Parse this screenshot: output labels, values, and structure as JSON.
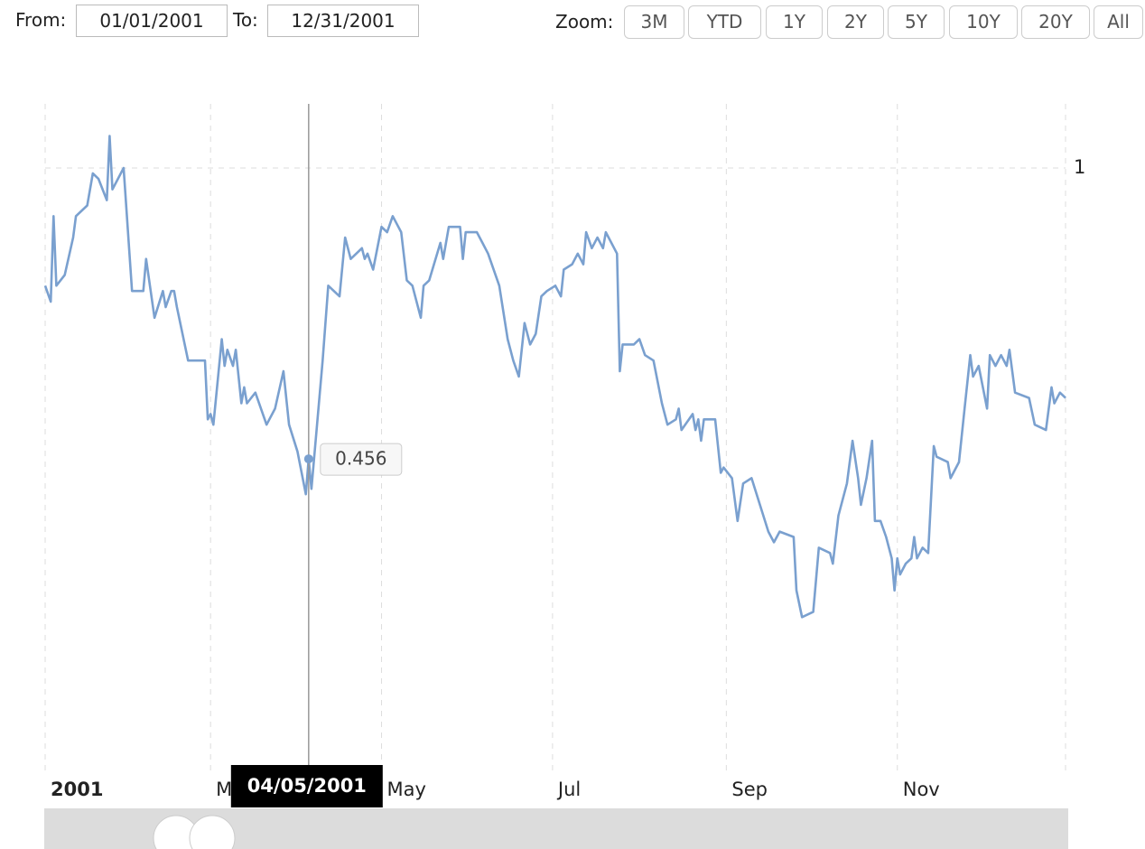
{
  "controls": {
    "from_label": "From:",
    "from": "01/01/2001",
    "to_label": "To:",
    "to": "12/31/2001",
    "zoom_label": "Zoom:",
    "zoom_buttons": [
      "3M",
      "YTD",
      "1Y",
      "2Y",
      "5Y",
      "10Y",
      "20Y",
      "All"
    ]
  },
  "chart_data": {
    "type": "line",
    "color": "#7aa0cf",
    "grid": true,
    "xlim": [
      1,
      365
    ],
    "ylim": [
      -0.13,
      1.12
    ],
    "yticks": [
      1
    ],
    "xticks": [
      {
        "value": 1,
        "label": "2001"
      },
      {
        "value": 60,
        "label": "Mar"
      },
      {
        "value": 121,
        "label": "May"
      },
      {
        "value": 182,
        "label": "Jul"
      },
      {
        "value": 244,
        "label": "Sep"
      },
      {
        "value": 305,
        "label": "Nov"
      }
    ],
    "x": [
      1,
      3,
      4,
      5,
      8,
      11,
      12,
      16,
      18,
      20,
      23,
      24,
      25,
      29,
      32,
      36,
      37,
      40,
      43,
      44,
      46,
      47,
      48,
      52,
      55,
      58,
      59,
      60,
      61,
      64,
      65,
      66,
      68,
      69,
      71,
      72,
      73,
      76,
      80,
      83,
      86,
      88,
      91,
      94,
      95,
      96,
      98,
      100,
      102,
      106,
      108,
      110,
      114,
      115,
      116,
      118,
      121,
      123,
      125,
      128,
      130,
      132,
      135,
      136,
      138,
      142,
      143,
      145,
      149,
      150,
      151,
      155,
      157,
      159,
      163,
      166,
      168,
      170,
      172,
      174,
      176,
      178,
      180,
      183,
      185,
      186,
      189,
      191,
      193,
      194,
      196,
      198,
      200,
      201,
      205,
      206,
      207,
      211,
      213,
      215,
      218,
      221,
      223,
      226,
      227,
      228,
      232,
      233,
      234,
      235,
      236,
      240,
      242,
      243,
      246,
      248,
      250,
      253,
      256,
      259,
      261,
      263,
      268,
      269,
      271,
      275,
      277,
      281,
      282,
      284,
      287,
      289,
      291,
      292,
      294,
      296,
      297,
      299,
      301,
      303,
      304,
      305,
      306,
      308,
      310,
      311,
      312,
      314,
      316,
      318,
      319,
      323,
      324,
      327,
      329,
      331,
      332,
      334,
      337,
      338,
      340,
      342,
      344,
      345,
      347,
      352,
      354,
      358,
      360,
      361,
      363,
      365
    ],
    "values": [
      0.78,
      0.75,
      0.91,
      0.78,
      0.8,
      0.87,
      0.91,
      0.93,
      0.99,
      0.98,
      0.94,
      1.06,
      0.96,
      1.0,
      0.77,
      0.77,
      0.83,
      0.72,
      0.77,
      0.74,
      0.77,
      0.77,
      0.74,
      0.64,
      0.64,
      0.64,
      0.53,
      0.54,
      0.52,
      0.68,
      0.63,
      0.66,
      0.63,
      0.66,
      0.56,
      0.59,
      0.56,
      0.58,
      0.52,
      0.55,
      0.62,
      0.52,
      0.47,
      0.39,
      0.456,
      0.4,
      0.52,
      0.64,
      0.78,
      0.76,
      0.87,
      0.83,
      0.85,
      0.83,
      0.84,
      0.81,
      0.89,
      0.88,
      0.91,
      0.88,
      0.79,
      0.78,
      0.72,
      0.78,
      0.79,
      0.86,
      0.83,
      0.89,
      0.89,
      0.83,
      0.88,
      0.88,
      0.86,
      0.84,
      0.78,
      0.68,
      0.64,
      0.61,
      0.71,
      0.67,
      0.69,
      0.76,
      0.77,
      0.78,
      0.76,
      0.81,
      0.82,
      0.84,
      0.82,
      0.88,
      0.85,
      0.87,
      0.85,
      0.88,
      0.84,
      0.62,
      0.67,
      0.67,
      0.68,
      0.65,
      0.64,
      0.56,
      0.52,
      0.53,
      0.55,
      0.51,
      0.54,
      0.51,
      0.53,
      0.49,
      0.53,
      0.53,
      0.43,
      0.44,
      0.42,
      0.34,
      0.41,
      0.42,
      0.37,
      0.32,
      0.3,
      0.32,
      0.31,
      0.21,
      0.16,
      0.17,
      0.29,
      0.28,
      0.26,
      0.35,
      0.41,
      0.49,
      0.42,
      0.37,
      0.42,
      0.49,
      0.34,
      0.34,
      0.31,
      0.27,
      0.21,
      0.27,
      0.24,
      0.26,
      0.27,
      0.31,
      0.27,
      0.29,
      0.28,
      0.48,
      0.46,
      0.45,
      0.42,
      0.45,
      0.55,
      0.65,
      0.61,
      0.63,
      0.55,
      0.65,
      0.63,
      0.65,
      0.63,
      0.66,
      0.58,
      0.57,
      0.52,
      0.51,
      0.59,
      0.56,
      0.58,
      0.57
    ],
    "tooltip": {
      "x": 95,
      "date": "04/05/2001",
      "value": 0.456
    }
  }
}
